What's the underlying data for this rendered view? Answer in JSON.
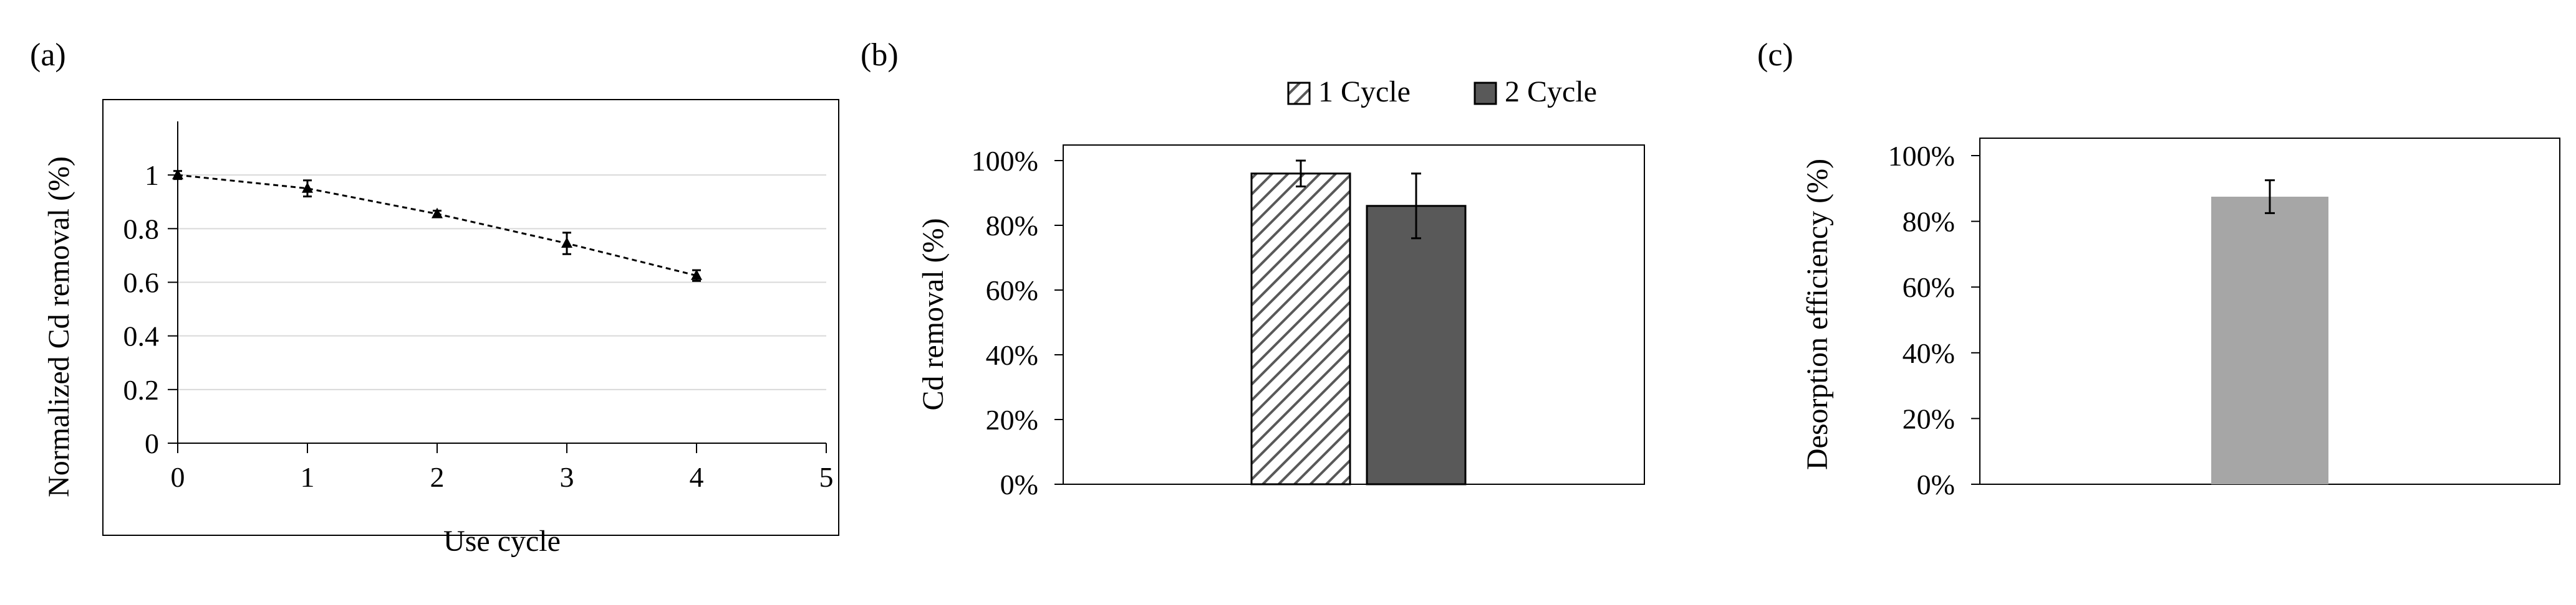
{
  "chart_data": [
    {
      "panel_label": "(a)",
      "type": "line",
      "xlabel": "Use cycle",
      "ylabel": "Normalized Cd removal (%)",
      "xlim": [
        0,
        5
      ],
      "ylim": [
        0,
        1.2
      ],
      "x_ticks": [
        0,
        1,
        2,
        3,
        4,
        5
      ],
      "y_ticks": [
        0,
        0.2,
        0.4,
        0.6,
        0.8,
        1
      ],
      "grid": "horizontal",
      "line_style": "dashed",
      "marker": "triangle",
      "series": [
        {
          "x": [
            0,
            1,
            2,
            3,
            4
          ],
          "y": [
            1.0,
            0.95,
            0.855,
            0.745,
            0.625
          ],
          "err": [
            0.015,
            0.03,
            0.012,
            0.04,
            0.02
          ]
        }
      ]
    },
    {
      "panel_label": "(b)",
      "type": "bar",
      "xlabel": "",
      "ylabel": "Cd removal (%)",
      "ylim": [
        0,
        100
      ],
      "y_ticks": [
        "0%",
        "20%",
        "40%",
        "60%",
        "80%",
        "100%"
      ],
      "legend_position": "top",
      "series": [
        {
          "name": "1 Cycle",
          "values": [
            96
          ],
          "err": [
            4
          ],
          "fill": "hatched"
        },
        {
          "name": "2 Cycle",
          "values": [
            86
          ],
          "err": [
            10
          ],
          "fill": "#595959"
        }
      ]
    },
    {
      "panel_label": "(c)",
      "type": "bar",
      "xlabel": "",
      "ylabel": "Desorption efficiency (%)",
      "ylim": [
        0,
        100
      ],
      "y_ticks": [
        "0%",
        "20%",
        "40%",
        "60%",
        "80%",
        "100%"
      ],
      "series": [
        {
          "values": [
            87.5
          ],
          "err": [
            5
          ],
          "fill": "#a6a6a6"
        }
      ]
    }
  ]
}
